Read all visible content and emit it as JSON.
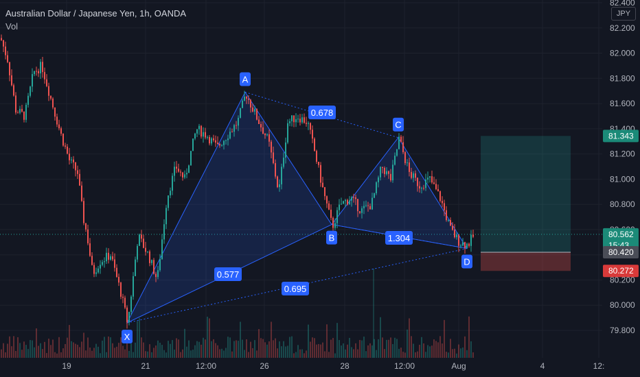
{
  "legend": {
    "title": "Australian Dollar / Japanese Yen, 1h, OANDA",
    "vol_label": "Vol"
  },
  "currency_button": "JPY",
  "colors": {
    "background": "#131722",
    "up": "#26a69a",
    "down": "#ef5350",
    "pattern_fill": "#2962ff",
    "pattern_line": "#2962ff",
    "target_zone": "#26a69a",
    "stop_zone": "#ef5350"
  },
  "chart_data": {
    "type": "candlestick",
    "title": "Australian Dollar / Japanese Yen, 1h, OANDA",
    "y_axis": {
      "ticks": [
        "82.400",
        "82.200",
        "82.000",
        "81.800",
        "81.600",
        "81.400",
        "81.200",
        "81.000",
        "80.800",
        "80.600",
        "80.400",
        "80.200",
        "80.000",
        "79.800"
      ],
      "ylim": [
        79.7,
        82.45
      ]
    },
    "x_axis": {
      "ticks": [
        "19",
        "21",
        "12:00",
        "26",
        "28",
        "12:00",
        "Aug",
        "4",
        "12:"
      ]
    },
    "price_path": [
      [
        0,
        82.12
      ],
      [
        10,
        81.95
      ],
      [
        22,
        81.55
      ],
      [
        35,
        81.5
      ],
      [
        48,
        81.85
      ],
      [
        60,
        81.9
      ],
      [
        75,
        81.6
      ],
      [
        88,
        81.35
      ],
      [
        100,
        81.15
      ],
      [
        112,
        81.05
      ],
      [
        120,
        80.7
      ],
      [
        126,
        80.55
      ],
      [
        134,
        80.25
      ],
      [
        145,
        80.35
      ],
      [
        160,
        80.4
      ],
      [
        175,
        80.1
      ],
      [
        185,
        79.85
      ],
      [
        200,
        80.55
      ],
      [
        215,
        80.4
      ],
      [
        228,
        80.2
      ],
      [
        242,
        80.85
      ],
      [
        255,
        81.1
      ],
      [
        268,
        81.0
      ],
      [
        285,
        81.4
      ],
      [
        300,
        81.35
      ],
      [
        315,
        81.25
      ],
      [
        330,
        81.35
      ],
      [
        345,
        81.45
      ],
      [
        357,
        81.68
      ],
      [
        372,
        81.5
      ],
      [
        390,
        81.3
      ],
      [
        405,
        80.9
      ],
      [
        418,
        81.45
      ],
      [
        432,
        81.5
      ],
      [
        447,
        81.45
      ],
      [
        458,
        81.2
      ],
      [
        470,
        80.9
      ],
      [
        483,
        80.62
      ],
      [
        495,
        80.8
      ],
      [
        510,
        80.85
      ],
      [
        525,
        80.75
      ],
      [
        540,
        80.8
      ],
      [
        555,
        81.1
      ],
      [
        568,
        81.0
      ],
      [
        580,
        81.32
      ],
      [
        595,
        81.05
      ],
      [
        610,
        80.95
      ],
      [
        625,
        81.0
      ],
      [
        640,
        80.85
      ],
      [
        655,
        80.6
      ],
      [
        668,
        80.5
      ],
      [
        680,
        80.48
      ],
      [
        690,
        80.56
      ]
    ],
    "harmonic_pattern": {
      "points": [
        {
          "label": "X",
          "price": 79.86
        },
        {
          "label": "A",
          "price": 81.69
        },
        {
          "label": "B",
          "price": 80.64
        },
        {
          "label": "C",
          "price": 81.33
        },
        {
          "label": "D",
          "price": 80.45
        }
      ],
      "ratios": [
        "0.577",
        "0.678",
        "1.304",
        "0.695"
      ]
    },
    "positions": {
      "target": "81.343",
      "current": "80.562",
      "countdown": "15:43",
      "entry": "80.420",
      "stop": "80.272"
    },
    "volume_visible": true,
    "grid": true
  }
}
